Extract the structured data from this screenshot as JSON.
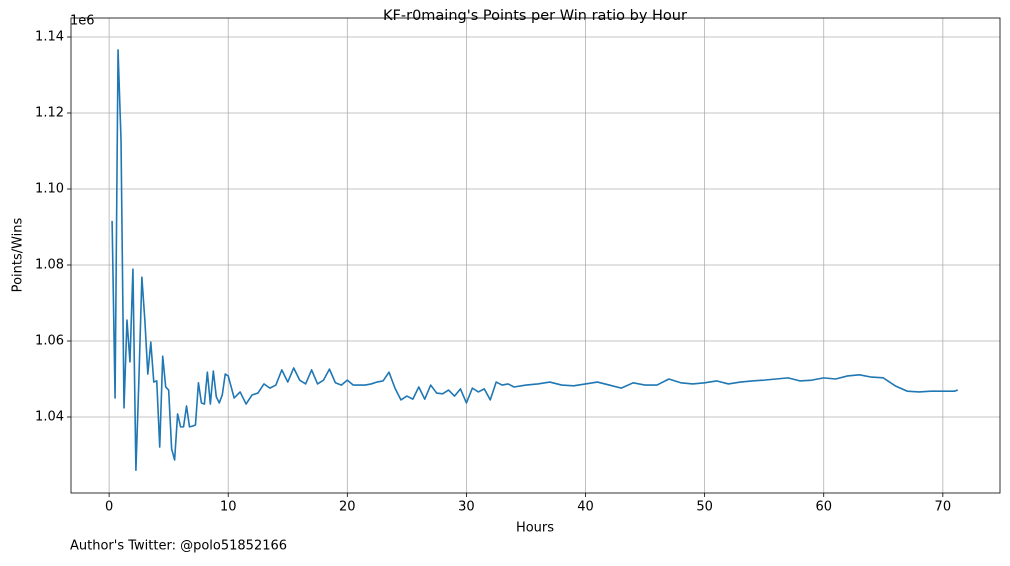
{
  "chart_data": {
    "type": "line",
    "title": "KF-r0maing's Points per Win ratio by Hour",
    "x_label": "Hours",
    "y_label": "Points/Wins",
    "y_offset_label": "1e6",
    "footer": "Author's Twitter: @polo51852166",
    "color": "#1f77b4",
    "grid": true,
    "xlim": [
      -3.2,
      74.8
    ],
    "ylim": [
      1.02,
      1.145
    ],
    "xticks": [
      0,
      10,
      20,
      30,
      40,
      50,
      60,
      70
    ],
    "yticks": [
      1.04,
      1.06,
      1.08,
      {
        "value": 1.1,
        "label": "1.10"
      },
      1.12,
      1.14
    ],
    "x": [
      0.25,
      0.5,
      0.75,
      1,
      1.25,
      1.5,
      1.75,
      2,
      2.25,
      2.5,
      2.75,
      3,
      3.25,
      3.5,
      3.75,
      4,
      4.25,
      4.5,
      4.75,
      5,
      5.25,
      5.5,
      5.75,
      6,
      6.25,
      6.5,
      6.75,
      7,
      7.25,
      7.5,
      7.75,
      8,
      8.25,
      8.5,
      8.75,
      9,
      9.25,
      9.5,
      9.75,
      10,
      10.5,
      11,
      11.5,
      12,
      12.5,
      13,
      13.5,
      14,
      14.5,
      15,
      15.5,
      16,
      16.5,
      17,
      17.5,
      18,
      18.5,
      19,
      19.5,
      20,
      20.5,
      21,
      21.5,
      22,
      22.5,
      23,
      23.5,
      24,
      24.5,
      25,
      25.5,
      26,
      26.5,
      27,
      27.5,
      28,
      28.5,
      29,
      29.5,
      30,
      30.5,
      31,
      31.5,
      32,
      32.5,
      33,
      33.5,
      34,
      35,
      36,
      37,
      38,
      39,
      40,
      41,
      42,
      43,
      44,
      45,
      46,
      47,
      48,
      49,
      50,
      51,
      52,
      53,
      54,
      55,
      56,
      57,
      58,
      59,
      60,
      61,
      62,
      63,
      64,
      65,
      66,
      67,
      68,
      69,
      70,
      71,
      71.25
    ],
    "values": [
      1.0916,
      1.045,
      1.1366,
      1.1129,
      1.0424,
      1.0655,
      1.0545,
      1.0789,
      1.026,
      1.0497,
      1.0768,
      1.0655,
      1.0513,
      1.0597,
      1.0492,
      1.0495,
      1.0321,
      1.056,
      1.0479,
      1.0471,
      1.0316,
      1.0287,
      1.0408,
      1.0374,
      1.0374,
      1.0429,
      1.0374,
      1.0376,
      1.0379,
      1.049,
      1.0437,
      1.0434,
      1.0518,
      1.0434,
      1.0521,
      1.0453,
      1.0437,
      1.0458,
      1.0513,
      1.0508,
      1.045,
      1.0466,
      1.0434,
      1.0458,
      1.0463,
      1.0487,
      1.0476,
      1.0484,
      1.0524,
      1.0492,
      1.0529,
      1.0497,
      1.0487,
      1.0524,
      1.0487,
      1.0497,
      1.0526,
      1.049,
      1.0484,
      1.0497,
      1.0484,
      1.0484,
      1.0484,
      1.0487,
      1.0492,
      1.0495,
      1.0518,
      1.0476,
      1.0445,
      1.0455,
      1.0447,
      1.0479,
      1.0447,
      1.0484,
      1.0463,
      1.0461,
      1.0471,
      1.0455,
      1.0474,
      1.0437,
      1.0476,
      1.0466,
      1.0474,
      1.0445,
      1.0492,
      1.0484,
      1.0487,
      1.0479,
      1.0484,
      1.0487,
      1.0492,
      1.0484,
      1.0482,
      1.0487,
      1.0492,
      1.0484,
      1.0476,
      1.049,
      1.0484,
      1.0484,
      1.05,
      1.049,
      1.0487,
      1.049,
      1.0495,
      1.0487,
      1.0492,
      1.0495,
      1.0497,
      1.05,
      1.0503,
      1.0495,
      1.0497,
      1.0503,
      1.05,
      1.0508,
      1.0511,
      1.0505,
      1.0503,
      1.0482,
      1.0468,
      1.0466,
      1.0468,
      1.0468,
      1.0468,
      1.0471
    ]
  }
}
